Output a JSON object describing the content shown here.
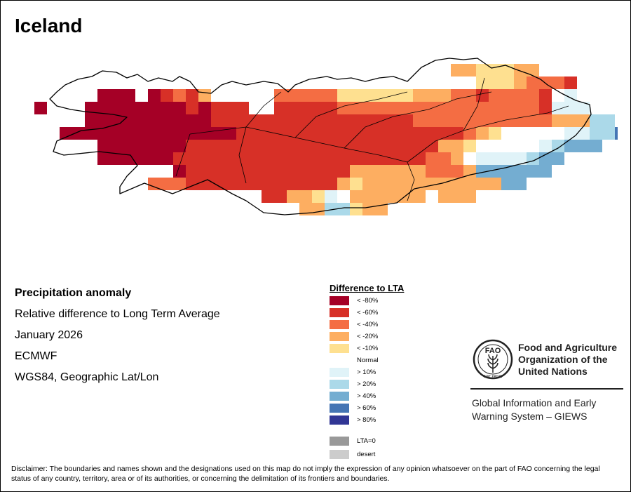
{
  "map_title": "Iceland",
  "info": {
    "heading": "Precipitation anomaly",
    "subtitle": "Relative difference to Long Term Average",
    "period": "January 2026",
    "source": "ECMWF",
    "projection": "WGS84, Geographic Lat/Lon"
  },
  "legend": {
    "title": "Difference to LTA",
    "items": [
      {
        "label": "< -80%",
        "color": "#a50026"
      },
      {
        "label": "< -60%",
        "color": "#d73027"
      },
      {
        "label": "< -40%",
        "color": "#f46d43"
      },
      {
        "label": "< -20%",
        "color": "#fdae61"
      },
      {
        "label": "< -10%",
        "color": "#fee090"
      },
      {
        "label": "Normal",
        "color": "#ffffff"
      },
      {
        "label": "> 10%",
        "color": "#e0f3f8"
      },
      {
        "label": "> 20%",
        "color": "#abd9e9"
      },
      {
        "label": "> 40%",
        "color": "#74add1"
      },
      {
        "label": "> 60%",
        "color": "#4575b4"
      },
      {
        "label": "> 80%",
        "color": "#313695"
      }
    ],
    "extra": [
      {
        "label": "LTA=0",
        "color": "#999999"
      },
      {
        "label": "desert",
        "color": "#cccccc"
      }
    ]
  },
  "org": {
    "logo_text": "FAO",
    "logo_motto": "FIAT PANIS",
    "name": "Food and Agriculture Organization of the United Nations",
    "system": "Global Information and Early Warning System – GIEWS"
  },
  "disclaimer": "Disclaimer: The boundaries and names shown and the designations used on this map do not imply the expression of any opinion whatsoever on the part of FAO concerning the legal status of any country, territory, area or of its authorities, or concerning the delimitation of its frontiers and boundaries."
}
